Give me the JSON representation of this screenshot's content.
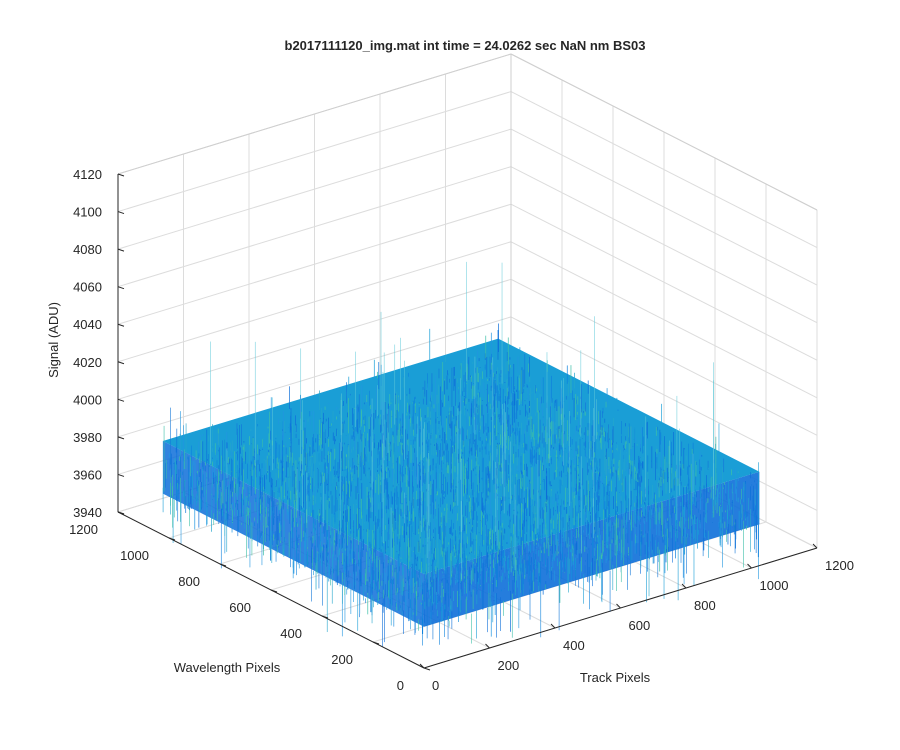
{
  "window": {
    "background": "#ffffff"
  },
  "chart_data": {
    "type": "surface",
    "title": "b2017111120_img.mat int time = 24.0262 sec  NaN nm BS03",
    "xlabel": "Track Pixels",
    "ylabel": "Wavelength Pixels",
    "zlabel": "Signal (ADU)",
    "xlim": [
      0,
      1200
    ],
    "ylim": [
      0,
      1200
    ],
    "zlim": [
      3940,
      4120
    ],
    "x_ticks": [
      "0",
      "200",
      "400",
      "600",
      "800",
      "1000",
      "1200"
    ],
    "y_ticks": [
      "0",
      "200",
      "400",
      "600",
      "800",
      "1000",
      "1200"
    ],
    "z_ticks": [
      "3940",
      "3960",
      "3980",
      "4000",
      "4020",
      "4040",
      "4060",
      "4080",
      "4100",
      "4120"
    ],
    "surface": {
      "x_range": [
        0,
        1024
      ],
      "y_range": [
        0,
        1024
      ],
      "mean_signal": 3975,
      "noise_band": [
        3962,
        3990
      ],
      "max_spike": 4045,
      "min_dip": 3935
    },
    "grid": true,
    "colormap": "parula",
    "colors": {
      "surface_low": "#0d6fd9",
      "surface_mid": "#1a9ed6",
      "surface_high": "#3dbfa8",
      "grid": "#dcdcdc",
      "axis": "#262626"
    }
  }
}
